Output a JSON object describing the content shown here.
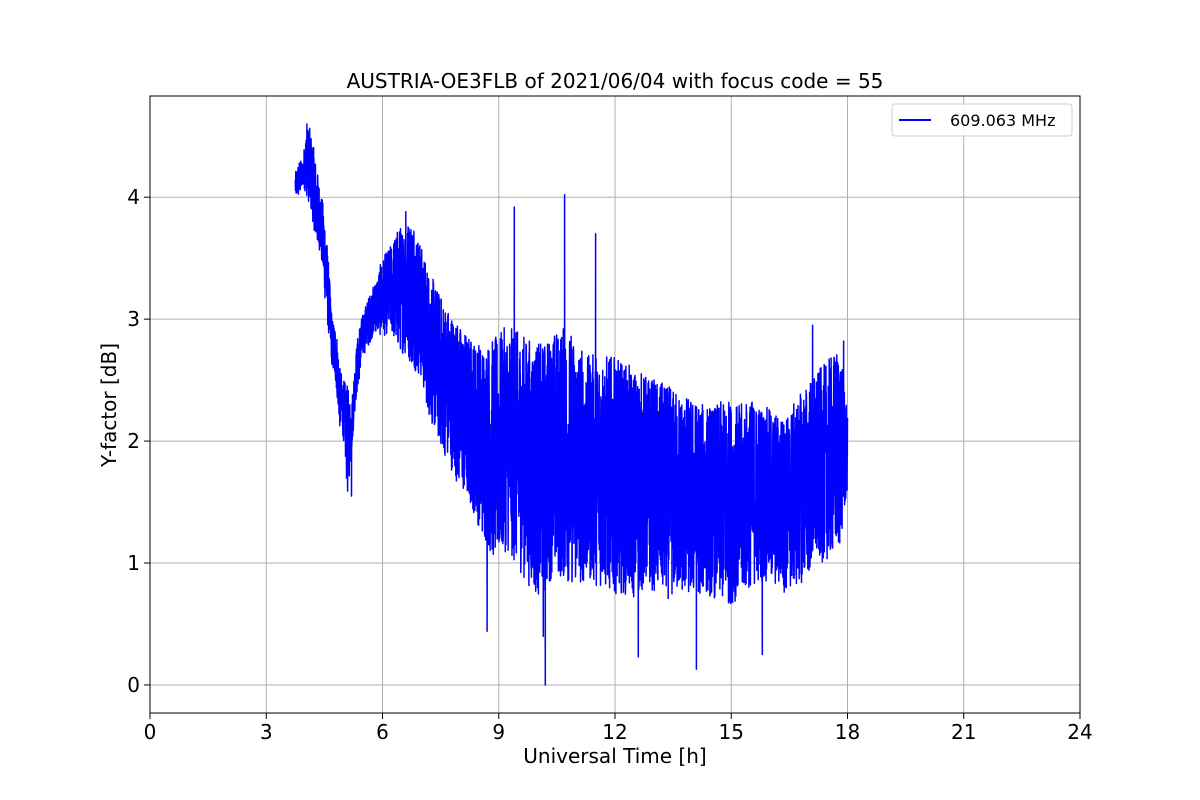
{
  "chart_data": {
    "type": "line",
    "title": "AUSTRIA-OE3FLB of 2021/06/04 with focus code = 55",
    "xlabel": "Universal Time [h]",
    "ylabel": "Y-factor [dB]",
    "xlim": [
      0,
      24
    ],
    "ylim": [
      -0.23,
      4.83
    ],
    "xticks": [
      0,
      3,
      6,
      9,
      12,
      15,
      18,
      21,
      24
    ],
    "yticks": [
      0,
      1,
      2,
      3,
      4
    ],
    "grid": true,
    "legend_position": "top-right",
    "series": [
      {
        "name": "609.063 MHz",
        "color": "#0000ff",
        "envelope": {
          "x": [
            3.75,
            3.85,
            3.95,
            4.0,
            4.1,
            4.2,
            4.3,
            4.4,
            4.5,
            4.6,
            4.7,
            4.8,
            4.9,
            5.0,
            5.1,
            5.2,
            5.3,
            5.4,
            5.5,
            5.6,
            5.8,
            6.0,
            6.2,
            6.4,
            6.6,
            6.8,
            7.0,
            7.2,
            7.5,
            7.8,
            8.0,
            8.3,
            8.6,
            8.9,
            9.2,
            9.5,
            9.8,
            10.1,
            10.4,
            10.7,
            11.0,
            11.3,
            11.6,
            11.9,
            12.2,
            12.5,
            12.8,
            13.1,
            13.4,
            13.7,
            14.0,
            14.3,
            14.6,
            14.9,
            15.2,
            15.5,
            15.8,
            16.1,
            16.4,
            16.7,
            17.0,
            17.3,
            17.6,
            17.8,
            18.0
          ],
          "lo": [
            4.0,
            4.0,
            4.1,
            4.05,
            3.95,
            3.8,
            3.6,
            3.55,
            3.2,
            2.9,
            2.6,
            2.45,
            2.1,
            2.0,
            1.55,
            1.9,
            2.3,
            2.5,
            2.7,
            2.75,
            2.9,
            2.85,
            2.9,
            2.75,
            2.7,
            2.6,
            2.5,
            2.2,
            1.95,
            1.75,
            1.6,
            1.45,
            1.2,
            1.0,
            1.1,
            0.95,
            0.8,
            0.7,
            0.9,
            0.85,
            0.8,
            0.85,
            0.8,
            0.75,
            0.75,
            0.7,
            0.8,
            0.75,
            0.7,
            0.75,
            0.7,
            0.75,
            0.7,
            0.65,
            0.7,
            0.8,
            0.85,
            0.8,
            0.75,
            0.8,
            0.9,
            1.0,
            1.05,
            1.1,
            1.6
          ],
          "hi": [
            4.2,
            4.3,
            4.3,
            4.5,
            4.6,
            4.45,
            4.25,
            4.05,
            3.9,
            3.5,
            3.0,
            2.95,
            2.6,
            2.5,
            2.45,
            2.3,
            2.7,
            2.95,
            3.05,
            3.15,
            3.3,
            3.5,
            3.6,
            3.75,
            3.8,
            3.85,
            3.6,
            3.4,
            3.2,
            3.05,
            2.95,
            2.85,
            2.8,
            2.85,
            2.95,
            2.9,
            2.85,
            2.8,
            2.9,
            2.95,
            2.85,
            2.7,
            2.75,
            2.7,
            2.65,
            2.6,
            2.55,
            2.5,
            2.45,
            2.4,
            2.35,
            2.3,
            2.3,
            2.35,
            2.3,
            2.35,
            2.3,
            2.25,
            2.2,
            2.35,
            2.5,
            2.6,
            2.7,
            2.8,
            2.2
          ]
        },
        "spikes": [
          {
            "x": 4.05,
            "y": 4.6
          },
          {
            "x": 5.2,
            "y": 1.55
          },
          {
            "x": 6.6,
            "y": 3.88
          },
          {
            "x": 8.7,
            "y": 0.44
          },
          {
            "x": 9.4,
            "y": 3.92
          },
          {
            "x": 10.15,
            "y": 0.4
          },
          {
            "x": 10.2,
            "y": 0.0
          },
          {
            "x": 10.7,
            "y": 4.02
          },
          {
            "x": 11.5,
            "y": 3.7
          },
          {
            "x": 12.6,
            "y": 0.23
          },
          {
            "x": 14.1,
            "y": 0.13
          },
          {
            "x": 15.8,
            "y": 0.25
          },
          {
            "x": 17.1,
            "y": 2.95
          },
          {
            "x": 17.9,
            "y": 2.82
          }
        ]
      }
    ]
  }
}
